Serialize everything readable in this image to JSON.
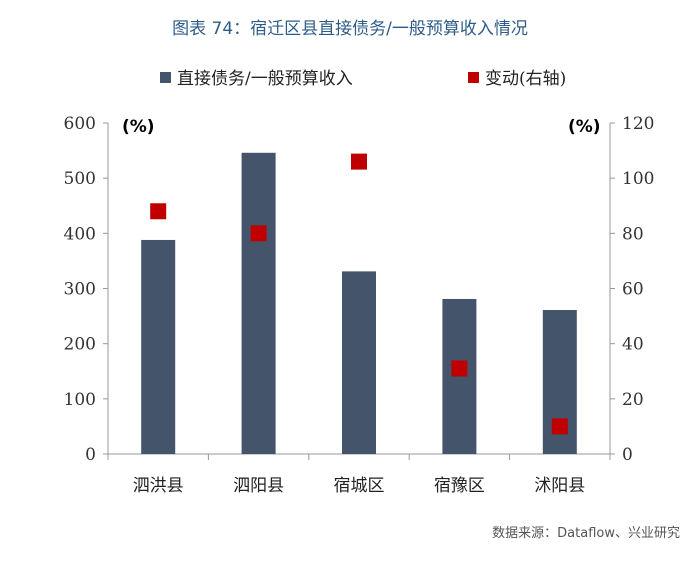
{
  "title": "图表 74：宿迁区县直接债务/一般预算收入情况",
  "source": "数据来源：Dataflow、兴业研究",
  "chart_data": {
    "type": "bar",
    "categories": [
      "泗洪县",
      "泗阳县",
      "宿城区",
      "宿豫区",
      "沭阳县"
    ],
    "series": [
      {
        "name": "直接债务/一般预算收入",
        "axis": "left",
        "type": "bar",
        "color": "#44546a",
        "values": [
          388,
          546,
          331,
          281,
          261
        ]
      },
      {
        "name": "变动(右轴)",
        "axis": "right",
        "type": "scatter",
        "color": "#c00000",
        "values": [
          88,
          80,
          106,
          31,
          10
        ]
      }
    ],
    "y_left": {
      "min": 0,
      "max": 600,
      "ticks": [
        "0",
        "100",
        "200",
        "300",
        "400",
        "500",
        "600"
      ],
      "unit": "(%)"
    },
    "y_right": {
      "min": 0,
      "max": 120,
      "ticks": [
        "0",
        "20",
        "40",
        "60",
        "80",
        "100",
        "120"
      ],
      "unit": "(%)"
    },
    "legend_position": "top",
    "grid": false
  }
}
